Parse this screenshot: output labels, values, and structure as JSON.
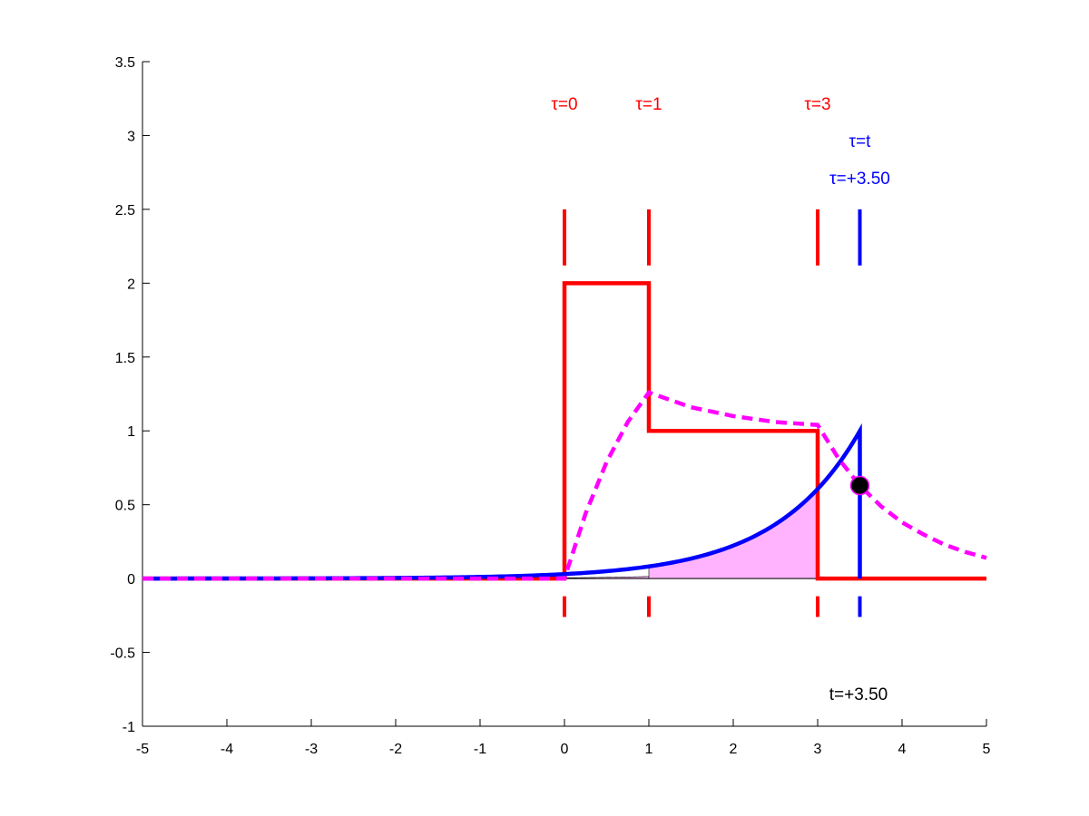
{
  "chart_data": {
    "type": "line",
    "title": "",
    "xlabel": "",
    "ylabel": "",
    "xlim": [
      -5,
      5
    ],
    "ylim": [
      -1,
      3.5
    ],
    "x_ticks": [
      "-5",
      "-4",
      "-3",
      "-2",
      "-1",
      "0",
      "1",
      "2",
      "3",
      "4",
      "5"
    ],
    "y_ticks": [
      "-1",
      "-0.5",
      "0",
      "0.5",
      "1",
      "1.5",
      "2",
      "2.5",
      "3",
      "3.5"
    ],
    "grid": false,
    "t": 3.5,
    "colors": {
      "input": "#ff0000",
      "kernel": "#0000ff",
      "output": "#ff00ff",
      "overlap_fill": "#ffb3ff",
      "marker": "#000000"
    },
    "series": [
      {
        "role": "input",
        "style": "solid",
        "x": [
          -5,
          0,
          0,
          1,
          1,
          3,
          3,
          5
        ],
        "y": [
          0,
          0,
          2,
          2,
          1,
          1,
          0,
          0
        ]
      },
      {
        "role": "kernel",
        "style": "solid",
        "decay": 1,
        "x_range": [
          -5,
          3.5
        ],
        "y_end": 1
      },
      {
        "role": "output",
        "style": "dashed",
        "x": [
          -5,
          0,
          0.25,
          0.5,
          0.75,
          1,
          1.5,
          2,
          2.5,
          3,
          3.25,
          3.5,
          3.75,
          4,
          4.25,
          4.5,
          4.75,
          5
        ],
        "y": [
          0,
          0,
          0.44,
          0.79,
          1.06,
          1.26,
          1.16,
          1.1,
          1.06,
          1.04,
          0.81,
          0.63,
          0.49,
          0.38,
          0.3,
          0.23,
          0.18,
          0.14
        ]
      }
    ],
    "marker_point": {
      "x": 3.5,
      "y": 0.63
    },
    "overlap": [
      {
        "x_from": 0,
        "x_to": 1,
        "height_factor": 2
      },
      {
        "x_from": 1,
        "x_to": 3,
        "height_factor": 1
      }
    ],
    "markers": [
      {
        "role": "input",
        "x": 0,
        "label": "τ=0"
      },
      {
        "role": "input",
        "x": 1,
        "label": "τ=1"
      },
      {
        "role": "input",
        "x": 3,
        "label": "τ=3"
      },
      {
        "role": "kernel",
        "x": 3.5,
        "label": "τ=t",
        "label2": "τ=+3.50"
      }
    ],
    "time_label": "t=+3.50"
  }
}
